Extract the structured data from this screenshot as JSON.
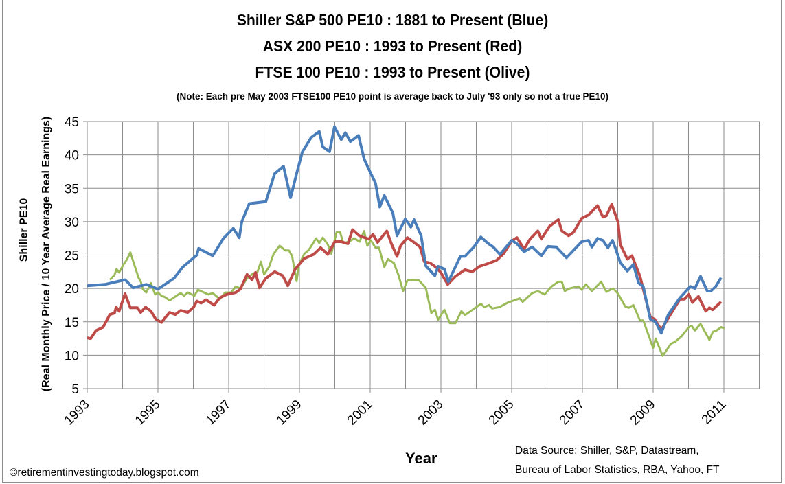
{
  "titles": [
    "Shiller S&P 500 PE10 : 1881 to Present (Blue)",
    "ASX 200 PE10 : 1993 to Present (Red)",
    "FTSE 100 PE10 : 1993 to Present (Olive)"
  ],
  "note": "(Note:  Each pre May 2003 FTSE100 PE10 point is average back to July '93 only so not a true PE10)",
  "source_line1": "Data Source: Shiller, S&P, Datastream,",
  "source_line2": "Bureau of Labor Statistics, RBA, Yahoo, FT",
  "copyright": "©retirementinvestingtoday.blogspot.com",
  "chart_data": {
    "type": "line",
    "xlabel": "Year",
    "ylabel_line1": "Shiller PE10",
    "ylabel_line2": "(Real Monthly Price / 10 Year Average Real Earnings)",
    "xlim": [
      1993,
      2012
    ],
    "ylim": [
      5,
      45
    ],
    "xticks": [
      "1993",
      "1995",
      "1997",
      "1999",
      "2001",
      "2003",
      "2005",
      "2007",
      "2009",
      "2011"
    ],
    "yticks": [
      "5",
      "10",
      "15",
      "20",
      "25",
      "30",
      "35",
      "40",
      "45"
    ],
    "grid": true,
    "legend": "none",
    "series": [
      {
        "color": "#4a7ebb",
        "x": [
          1993.0,
          1993.5,
          1994.07,
          1994.3,
          1994.67,
          1995.0,
          1995.45,
          1995.7,
          1996.1,
          1996.15,
          1996.55,
          1996.85,
          1997.13,
          1997.3,
          1997.37,
          1997.58,
          1998.05,
          1998.3,
          1998.55,
          1998.75,
          1998.92,
          1999.08,
          1999.33,
          1999.56,
          1999.66,
          1999.85,
          1999.99,
          2000.18,
          2000.3,
          2000.44,
          2000.67,
          2000.83,
          2001.02,
          2001.15,
          2001.27,
          2001.4,
          2001.64,
          2001.76,
          2001.99,
          2002.15,
          2002.24,
          2002.44,
          2002.57,
          2002.83,
          2002.92,
          2003.1,
          2003.21,
          2003.55,
          2003.68,
          2003.93,
          2004.13,
          2004.32,
          2004.48,
          2004.67,
          2005.0,
          2005.15,
          2005.35,
          2005.58,
          2005.84,
          2006.03,
          2006.26,
          2006.55,
          2006.98,
          2007.17,
          2007.27,
          2007.43,
          2007.58,
          2007.72,
          2007.85,
          2007.95,
          2008.07,
          2008.27,
          2008.44,
          2008.59,
          2008.72,
          2008.92,
          2009.07,
          2009.23,
          2009.43,
          2009.76,
          2010.05,
          2010.18,
          2010.34,
          2010.53,
          2010.63,
          2010.77,
          2010.92
        ],
        "y": [
          20.4,
          20.6,
          21.3,
          20.1,
          20.6,
          19.9,
          21.5,
          23.2,
          25.0,
          26.0,
          24.9,
          27.5,
          29.0,
          27.6,
          30.0,
          32.7,
          33.0,
          37.2,
          38.3,
          33.6,
          37.2,
          40.4,
          42.6,
          43.5,
          41.2,
          40.5,
          44.2,
          42.3,
          43.3,
          42.0,
          42.9,
          39.4,
          37.2,
          35.8,
          32.2,
          33.9,
          31.3,
          27.9,
          30.4,
          29.2,
          30.3,
          27.9,
          23.4,
          21.9,
          23.3,
          22.9,
          21.0,
          24.8,
          24.8,
          26.2,
          27.7,
          26.8,
          26.2,
          25.1,
          27.2,
          26.7,
          25.5,
          26.2,
          24.9,
          26.3,
          26.2,
          24.6,
          27.0,
          27.2,
          26.2,
          27.5,
          27.2,
          26.1,
          27.2,
          25.8,
          23.9,
          22.6,
          23.6,
          20.8,
          20.3,
          15.4,
          15.0,
          13.3,
          16.1,
          18.6,
          20.3,
          20.0,
          21.8,
          19.6,
          19.6,
          20.3,
          21.6
        ]
      },
      {
        "color": "#be4b48",
        "x": [
          1993.0,
          1993.1,
          1993.25,
          1993.45,
          1993.64,
          1993.77,
          1993.82,
          1993.9,
          1994.07,
          1994.22,
          1994.42,
          1994.51,
          1994.65,
          1994.8,
          1994.94,
          1995.1,
          1995.2,
          1995.33,
          1995.49,
          1995.64,
          1995.84,
          1996.01,
          1996.1,
          1996.22,
          1996.36,
          1996.59,
          1996.75,
          1996.94,
          1997.2,
          1997.33,
          1997.52,
          1997.66,
          1997.76,
          1997.87,
          1998.05,
          1998.3,
          1998.53,
          1998.67,
          1998.88,
          1999.14,
          1999.4,
          1999.6,
          1999.8,
          2000.0,
          2000.18,
          2000.37,
          2000.5,
          2000.69,
          2000.96,
          2001.08,
          2001.21,
          2001.47,
          2001.6,
          2001.76,
          2001.86,
          2002.05,
          2002.24,
          2002.41,
          2002.53,
          2002.7,
          2002.9,
          2003.02,
          2003.19,
          2003.41,
          2003.68,
          2003.89,
          2004.09,
          2004.32,
          2004.57,
          2004.77,
          2005.0,
          2005.15,
          2005.35,
          2005.52,
          2005.74,
          2005.84,
          2006.07,
          2006.32,
          2006.42,
          2006.61,
          2006.75,
          2006.98,
          2007.17,
          2007.43,
          2007.58,
          2007.68,
          2007.83,
          2008.01,
          2008.07,
          2008.27,
          2008.4,
          2008.63,
          2008.92,
          2009.04,
          2009.23,
          2009.5,
          2009.76,
          2009.89,
          2010.01,
          2010.11,
          2010.28,
          2010.49,
          2010.59,
          2010.68,
          2010.92
        ],
        "y": [
          12.6,
          12.5,
          13.7,
          14.2,
          16.1,
          16.3,
          17.2,
          16.6,
          19.2,
          17.1,
          17.1,
          16.4,
          17.2,
          16.6,
          15.4,
          14.9,
          15.6,
          16.4,
          16.1,
          16.7,
          16.4,
          17.2,
          18.1,
          17.8,
          18.3,
          17.5,
          18.6,
          19.1,
          19.4,
          19.9,
          22.1,
          21.3,
          22.4,
          20.1,
          21.5,
          22.5,
          21.9,
          20.4,
          22.9,
          24.5,
          25.1,
          26.1,
          25.1,
          27.0,
          27.0,
          26.7,
          28.8,
          27.9,
          27.4,
          28.1,
          26.9,
          28.6,
          26.7,
          24.8,
          26.4,
          27.6,
          26.9,
          26.2,
          24.0,
          23.8,
          23.0,
          22.2,
          20.6,
          21.8,
          22.8,
          22.5,
          23.3,
          23.7,
          24.2,
          25.2,
          27.1,
          27.6,
          25.9,
          27.4,
          28.6,
          27.4,
          29.3,
          30.3,
          28.6,
          27.9,
          28.4,
          30.5,
          31.0,
          32.4,
          30.7,
          30.9,
          32.6,
          29.9,
          26.6,
          24.4,
          24.9,
          21.8,
          15.7,
          15.4,
          13.8,
          16.2,
          18.4,
          18.4,
          19.1,
          17.9,
          18.8,
          16.6,
          17.1,
          16.8,
          18.0
        ]
      },
      {
        "color": "#9bbb59",
        "x": [
          1993.64,
          1993.77,
          1993.83,
          1993.9,
          1994.03,
          1994.13,
          1994.22,
          1994.28,
          1994.45,
          1994.51,
          1994.57,
          1994.67,
          1994.8,
          1994.92,
          1995.0,
          1995.1,
          1995.2,
          1995.33,
          1995.52,
          1995.64,
          1995.74,
          1995.84,
          1996.03,
          1996.13,
          1996.22,
          1996.42,
          1996.55,
          1996.75,
          1996.9,
          1997.07,
          1997.2,
          1997.33,
          1997.52,
          1997.68,
          1997.81,
          1997.91,
          1998.0,
          1998.14,
          1998.27,
          1998.44,
          1998.6,
          1998.7,
          1998.79,
          1998.92,
          1998.98,
          1999.14,
          1999.27,
          1999.47,
          1999.56,
          1999.66,
          1999.8,
          1999.9,
          2000.05,
          2000.15,
          2000.24,
          2000.4,
          2000.55,
          2000.7,
          2000.83,
          2000.92,
          2001.02,
          2001.15,
          2001.25,
          2001.4,
          2001.5,
          2001.67,
          2001.8,
          2001.93,
          2002.05,
          2002.18,
          2002.38,
          2002.57,
          2002.73,
          2002.83,
          2002.92,
          2003.1,
          2003.25,
          2003.41,
          2003.58,
          2003.68,
          2003.84,
          2004.13,
          2004.23,
          2004.36,
          2004.45,
          2004.65,
          2004.9,
          2005.23,
          2005.31,
          2005.58,
          2005.74,
          2005.93,
          2006.13,
          2006.32,
          2006.42,
          2006.5,
          2006.64,
          2006.89,
          2006.98,
          2007.1,
          2007.27,
          2007.53,
          2007.68,
          2007.87,
          2008.01,
          2008.21,
          2008.31,
          2008.44,
          2008.63,
          2008.72,
          2009.0,
          2009.07,
          2009.27,
          2009.5,
          2009.62,
          2009.8,
          2010.01,
          2010.09,
          2010.18,
          2010.34,
          2010.59,
          2010.69,
          2010.79,
          2010.92,
          2011.02
        ],
        "y": [
          21.3,
          22.0,
          22.9,
          22.4,
          23.6,
          24.4,
          25.4,
          24.4,
          21.6,
          21.1,
          19.9,
          19.4,
          20.8,
          19.1,
          19.4,
          18.9,
          18.7,
          18.2,
          18.9,
          19.3,
          18.9,
          19.4,
          18.9,
          19.8,
          19.6,
          19.1,
          19.3,
          18.4,
          19.4,
          19.4,
          20.3,
          20.0,
          21.5,
          22.2,
          22.4,
          24.0,
          22.1,
          23.2,
          25.2,
          26.4,
          25.7,
          25.7,
          24.9,
          21.1,
          23.5,
          25.2,
          25.8,
          27.5,
          26.8,
          27.6,
          26.6,
          25.2,
          28.4,
          28.4,
          26.8,
          27.0,
          27.5,
          27.0,
          28.6,
          26.4,
          27.2,
          26.1,
          26.1,
          23.2,
          24.4,
          23.8,
          22.0,
          19.6,
          21.2,
          21.3,
          21.2,
          20.1,
          16.3,
          16.8,
          15.3,
          16.8,
          14.8,
          14.8,
          16.6,
          16.0,
          16.6,
          17.7,
          17.2,
          17.5,
          17.0,
          17.2,
          17.9,
          18.5,
          18.0,
          19.3,
          19.6,
          19.1,
          20.3,
          21.0,
          21.0,
          19.6,
          20.0,
          20.3,
          19.8,
          20.6,
          19.6,
          21.0,
          19.5,
          20.0,
          19.2,
          17.3,
          17.1,
          17.5,
          15.2,
          15.2,
          11.1,
          12.5,
          9.9,
          11.7,
          12.0,
          12.8,
          14.2,
          14.4,
          13.7,
          14.7,
          12.3,
          13.5,
          13.7,
          14.2,
          14.0
        ]
      }
    ]
  }
}
